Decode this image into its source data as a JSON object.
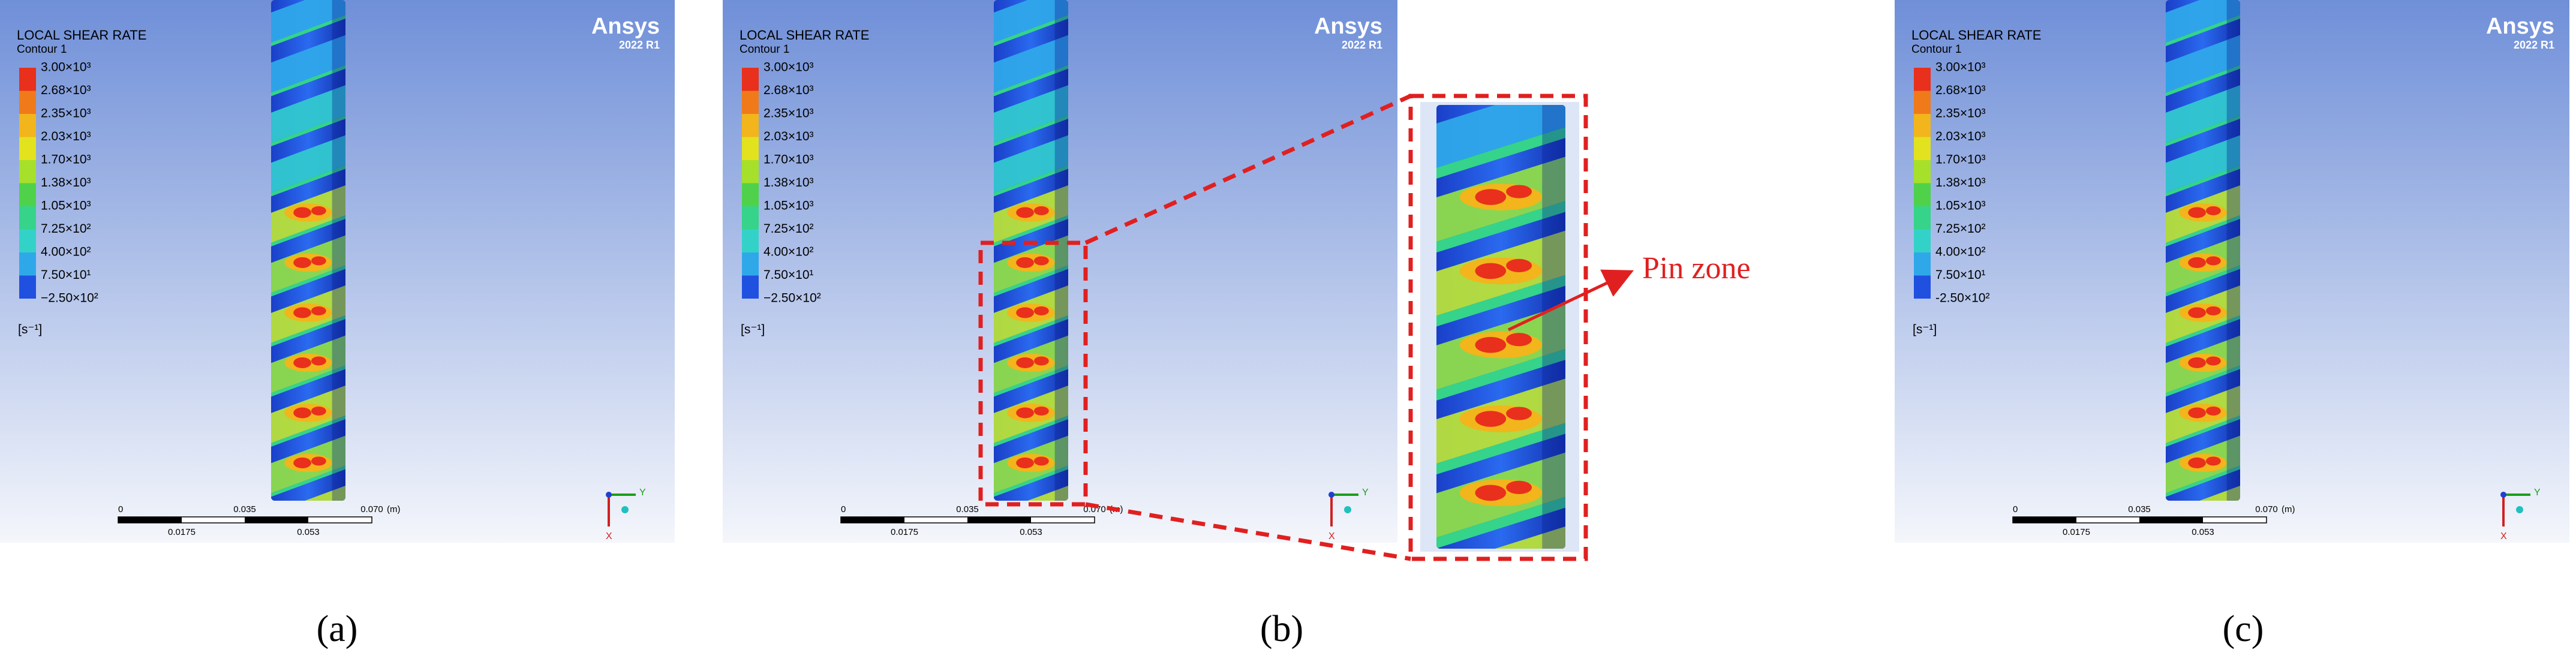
{
  "panels": [
    {
      "legend_title": "LOCAL SHEAR RATE",
      "contour": "Contour 1",
      "legend_labels": [
        "3.00×10³",
        "2.68×10³",
        "2.35×10³",
        "2.03×10³",
        "1.70×10³",
        "1.38×10³",
        "1.05×10³",
        "7.25×10²",
        "4.00×10²",
        "7.50×10¹",
        "−2.50×10²"
      ],
      "unit": "[s⁻¹]",
      "brand": "Ansys",
      "version": "2022 R1",
      "scale_top": [
        "0",
        "0.035",
        "0.070"
      ],
      "scale_unit": "(m)",
      "scale_bottom": [
        "0.0175",
        "0.053"
      ],
      "axis_y": "Y",
      "axis_x": "X",
      "caption": "(a)"
    },
    {
      "legend_title": "LOCAL SHEAR RATE",
      "contour": "Contour 1",
      "legend_labels": [
        "3.00×10³",
        "2.68×10³",
        "2.35×10³",
        "2.03×10³",
        "1.70×10³",
        "1.38×10³",
        "1.05×10³",
        "7.25×10²",
        "4.00×10²",
        "7.50×10¹",
        "−2.50×10²"
      ],
      "unit": "[s⁻¹]",
      "brand": "Ansys",
      "version": "2022 R1",
      "scale_top": [
        "0",
        "0.035",
        "0.070"
      ],
      "scale_unit": "(m)",
      "scale_bottom": [
        "0.0175",
        "0.053"
      ],
      "axis_y": "Y",
      "axis_x": "X",
      "caption": "(b)"
    },
    {
      "legend_title": "LOCAL SHEAR RATE",
      "contour": "Contour 1",
      "legend_labels": [
        "3.00×10³",
        "2.68×10³",
        "2.35×10³",
        "2.03×10³",
        "1.70×10³",
        "1.38×10³",
        "1.05×10³",
        "7.25×10²",
        "4.00×10²",
        "7.50×10¹",
        "-2.50×10²"
      ],
      "unit": "[s⁻¹]",
      "brand": "Ansys",
      "version": "2022 R1",
      "scale_top": [
        "0",
        "0.035",
        "0.070"
      ],
      "scale_unit": "(m)",
      "scale_bottom": [
        "0.0175",
        "0.053"
      ],
      "axis_y": "Y",
      "axis_x": "X",
      "caption": "(c)"
    }
  ],
  "annotation": "Pin zone",
  "legend_colors": [
    "#e8301c",
    "#f07a1a",
    "#f2b51c",
    "#e2e21e",
    "#a6e02a",
    "#4fd24a",
    "#35d48a",
    "#33d2c8",
    "#2fa8ea",
    "#2050e0"
  ]
}
